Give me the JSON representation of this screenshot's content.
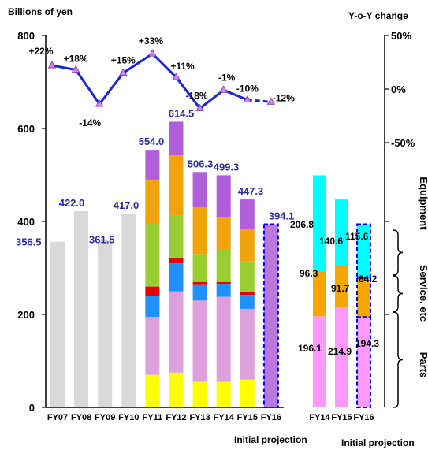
{
  "chart_data": {
    "type": "bar",
    "left_axis": {
      "title": "Billions of yen",
      "ticks": [
        "0",
        "200",
        "400",
        "600",
        "800"
      ],
      "range": [
        0,
        800
      ]
    },
    "right_axis": {
      "title": "Y-o-Y change",
      "ticks": [
        "50%",
        "0%",
        "-50%"
      ],
      "range": [
        -1.0,
        0.6
      ]
    },
    "segment_colors": {
      "yellow": "#ffff00",
      "pink": "#dda0dd",
      "blue": "#1e90ff",
      "red": "#e60000",
      "green": "#9acd32",
      "orange": "#f0a30a",
      "purple": "#b05fd9",
      "gray": "#d9d9d9",
      "cyan": "#00ffff",
      "parts": "#ff99ff",
      "service": "#f5a700",
      "line": "#1c25d6"
    },
    "bars": [
      {
        "cat": "FY07",
        "total": 356.5,
        "total_label": "356.5",
        "gray": true
      },
      {
        "cat": "FY08",
        "total": 422.0,
        "total_label": "422.0",
        "gray": true
      },
      {
        "cat": "FY09",
        "total": 361.5,
        "total_label": "361.5",
        "gray": true
      },
      {
        "cat": "FY10",
        "total": 417.0,
        "total_label": "417.0",
        "gray": true
      },
      {
        "cat": "FY11",
        "total": 554.0,
        "total_label": "554.0",
        "segments": [
          {
            "color": "yellow",
            "value": 70
          },
          {
            "color": "pink",
            "value": 125
          },
          {
            "color": "blue",
            "value": 45
          },
          {
            "color": "red",
            "value": 20
          },
          {
            "color": "green",
            "value": 135
          },
          {
            "color": "orange",
            "value": 95
          },
          {
            "color": "purple",
            "value": 64
          }
        ]
      },
      {
        "cat": "FY12",
        "total": 614.5,
        "total_label": "614.5",
        "segments": [
          {
            "color": "yellow",
            "value": 75
          },
          {
            "color": "pink",
            "value": 175
          },
          {
            "color": "blue",
            "value": 60
          },
          {
            "color": "red",
            "value": 12
          },
          {
            "color": "green",
            "value": 90
          },
          {
            "color": "orange",
            "value": 130
          },
          {
            "color": "purple",
            "value": 72.5
          }
        ]
      },
      {
        "cat": "FY13",
        "total": 506.3,
        "total_label": "506.3",
        "segments": [
          {
            "color": "yellow",
            "value": 55
          },
          {
            "color": "pink",
            "value": 175
          },
          {
            "color": "blue",
            "value": 35
          },
          {
            "color": "red",
            "value": 5
          },
          {
            "color": "green",
            "value": 60
          },
          {
            "color": "orange",
            "value": 100
          },
          {
            "color": "purple",
            "value": 76.3
          }
        ]
      },
      {
        "cat": "FY14",
        "total": 499.3,
        "total_label": "499.3",
        "segments": [
          {
            "color": "yellow",
            "value": 55
          },
          {
            "color": "pink",
            "value": 183
          },
          {
            "color": "blue",
            "value": 28
          },
          {
            "color": "red",
            "value": 4
          },
          {
            "color": "green",
            "value": 70
          },
          {
            "color": "orange",
            "value": 70
          },
          {
            "color": "purple",
            "value": 89.3
          }
        ]
      },
      {
        "cat": "FY15",
        "total": 447.3,
        "total_label": "447.3",
        "segments": [
          {
            "color": "yellow",
            "value": 60
          },
          {
            "color": "pink",
            "value": 152
          },
          {
            "color": "blue",
            "value": 30
          },
          {
            "color": "red",
            "value": 6
          },
          {
            "color": "green",
            "value": 67
          },
          {
            "color": "orange",
            "value": 68
          },
          {
            "color": "purple",
            "value": 64.3
          }
        ]
      },
      {
        "cat": "FY16",
        "total": 394.1,
        "total_label": "394.1",
        "projection": true
      }
    ],
    "yoy": {
      "values": [
        0.22,
        0.18,
        -0.14,
        0.15,
        0.33,
        0.11,
        -0.18,
        -0.01,
        -0.1,
        -0.12
      ],
      "labels": [
        "+22%",
        "+18%",
        "-14%",
        "+15%",
        "+33%",
        "+11%",
        "-18%",
        "-1%",
        "-10%",
        "-12%"
      ],
      "dashed_last": true
    },
    "breakdown": [
      {
        "cat": "FY14",
        "parts": 196.1,
        "service": 96.3,
        "equipment": 206.8,
        "labels": [
          "196.1",
          "96.3",
          "206.8"
        ]
      },
      {
        "cat": "FY15",
        "parts": 214.9,
        "service": 91.7,
        "equipment": 140.6,
        "labels": [
          "214.9",
          "91.7",
          "140.6"
        ]
      },
      {
        "cat": "FY16",
        "parts": 194.3,
        "service": 84.2,
        "equipment": 115.6,
        "labels": [
          "194.3",
          "84.2",
          "115.6"
        ],
        "projection": true
      }
    ],
    "breakdown_legend": [
      "Equipment",
      "Service, etc",
      "Parts"
    ],
    "notes": [
      "Initial projection",
      "Initial projection"
    ]
  }
}
